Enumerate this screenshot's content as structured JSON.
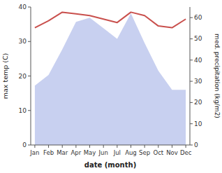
{
  "chart_data": {
    "type": "line",
    "xlabel": "date (month)",
    "ylabel": "max temp (C)",
    "y2label": "med. precipitation (kg/m2)",
    "categories": [
      "Jan",
      "Feb",
      "Mar",
      "Apr",
      "May",
      "Jun",
      "Jul",
      "Aug",
      "Sep",
      "Oct",
      "Nov",
      "Dec"
    ],
    "series": [
      {
        "type": "line",
        "color": "#c9504d",
        "values": [
          34,
          36,
          38.5,
          38.0,
          37.5,
          36.5,
          35.5,
          38.5,
          37.5,
          34.5,
          34.0,
          36.5
        ]
      },
      {
        "type": "area",
        "axis": "y2",
        "color": "#c8d0f0",
        "values": [
          28,
          33,
          45,
          58,
          60,
          55,
          50,
          62,
          48,
          35,
          26,
          26
        ]
      }
    ],
    "ylim": [
      0,
      40
    ],
    "yticks": [
      0,
      10,
      20,
      30,
      40
    ],
    "y2lim": [
      0,
      65
    ],
    "y2ticks": [
      0,
      10,
      20,
      30,
      40,
      50,
      60
    ],
    "grid": false
  }
}
